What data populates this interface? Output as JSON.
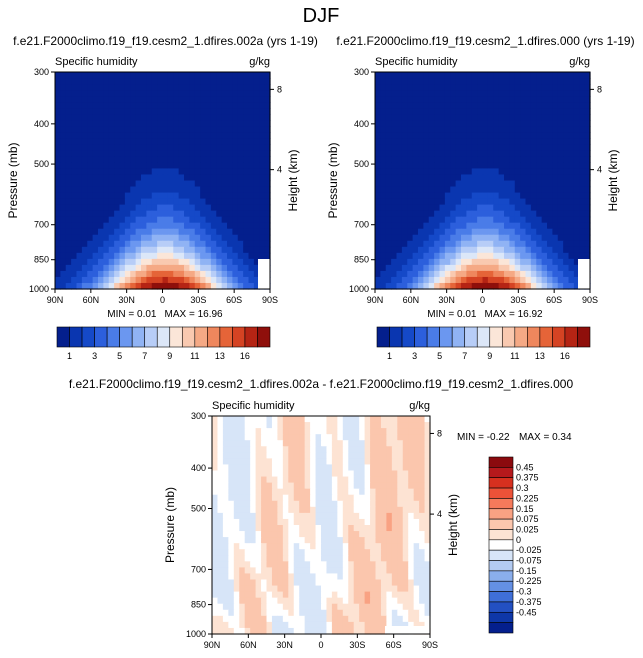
{
  "figure_title": "DJF",
  "chart_data": [
    {
      "type": "heatmap",
      "id": "panel-a",
      "title": "f.e21.F2000climo.f19_f19.cesm2_1.dfires.002a (yrs 1-19)",
      "left_label": "Specific humidity",
      "unit_label": "g/kg",
      "ylabel": "Pressure (mb)",
      "ylabel_right": "Height (km)",
      "x_ticks": [
        "90N",
        "60N",
        "30N",
        "0",
        "30S",
        "60S",
        "90S"
      ],
      "y_ticks": [
        "300",
        "400",
        "500",
        "700",
        "850",
        "1000"
      ],
      "height_ticks": [
        "8",
        "4"
      ],
      "min_text": "MIN =  0.01",
      "max_text": "MAX =  16.96",
      "max_value": 16.96,
      "min_value": 0.01,
      "colorbar_labels": [
        "1",
        "3",
        "5",
        "7",
        "9",
        "11",
        "13",
        "16"
      ],
      "colors": [
        "#041f8d",
        "#0a36b0",
        "#1549c8",
        "#2c5fdc",
        "#4a7ce8",
        "#6b97f0",
        "#90b3f4",
        "#b7cdf7",
        "#dce7f8",
        "#fbe6d8",
        "#f9c9b0",
        "#f5a985",
        "#ef875d",
        "#e56438",
        "#d54323",
        "#b52414",
        "#8f0f0b"
      ]
    },
    {
      "type": "heatmap",
      "id": "panel-b",
      "title": "f.e21.F2000climo.f19_f19.cesm2_1.dfires.000 (yrs 1-19)",
      "left_label": "Specific humidity",
      "unit_label": "g/kg",
      "ylabel": "Pressure (mb)",
      "ylabel_right": "Height (km)",
      "x_ticks": [
        "90N",
        "60N",
        "30N",
        "0",
        "30S",
        "60S",
        "90S"
      ],
      "y_ticks": [
        "300",
        "400",
        "500",
        "700",
        "850",
        "1000"
      ],
      "height_ticks": [
        "8",
        "4"
      ],
      "min_text": "MIN =  0.01",
      "max_text": "MAX =  16.92",
      "max_value": 16.92,
      "min_value": 0.01,
      "colorbar_labels": [
        "1",
        "3",
        "5",
        "7",
        "9",
        "11",
        "13",
        "16"
      ],
      "colors": [
        "#041f8d",
        "#0a36b0",
        "#1549c8",
        "#2c5fdc",
        "#4a7ce8",
        "#6b97f0",
        "#90b3f4",
        "#b7cdf7",
        "#dce7f8",
        "#fbe6d8",
        "#f9c9b0",
        "#f5a985",
        "#ef875d",
        "#e56438",
        "#d54323",
        "#b52414",
        "#8f0f0b"
      ]
    },
    {
      "type": "heatmap",
      "id": "panel-diff",
      "title": "f.e21.F2000climo.f19_f19.cesm2_1.dfires.002a - f.e21.F2000climo.f19_f19.cesm2_1.dfires.000",
      "left_label": "Specific humidity",
      "unit_label": "g/kg",
      "ylabel": "Pressure (mb)",
      "ylabel_right": "Height (km)",
      "x_ticks": [
        "90N",
        "60N",
        "30N",
        "0",
        "30S",
        "60S",
        "90S"
      ],
      "y_ticks": [
        "300",
        "400",
        "500",
        "700",
        "850",
        "1000"
      ],
      "height_ticks": [
        "8",
        "4"
      ],
      "min_text": "MIN = -0.22",
      "max_text": "MAX =  0.34",
      "max_value": 0.34,
      "min_value": -0.22,
      "colorbar_labels": [
        "0.45",
        "0.375",
        "0.3",
        "0.225",
        "0.15",
        "0.075",
        "0.025",
        "0",
        "-0.025",
        "-0.075",
        "-0.15",
        "-0.225",
        "-0.3",
        "-0.375",
        "-0.45"
      ],
      "colors": [
        "#8b0a0e",
        "#b5191c",
        "#d7301f",
        "#ec5238",
        "#f57a5b",
        "#f9a283",
        "#fbc6ad",
        "#fde3d3",
        "#ffffff",
        "#d7e5f8",
        "#b3cbf2",
        "#8aaeec",
        "#6490e4",
        "#3f6fd8",
        "#2350c2",
        "#0e37a8",
        "#041f8d"
      ]
    }
  ]
}
